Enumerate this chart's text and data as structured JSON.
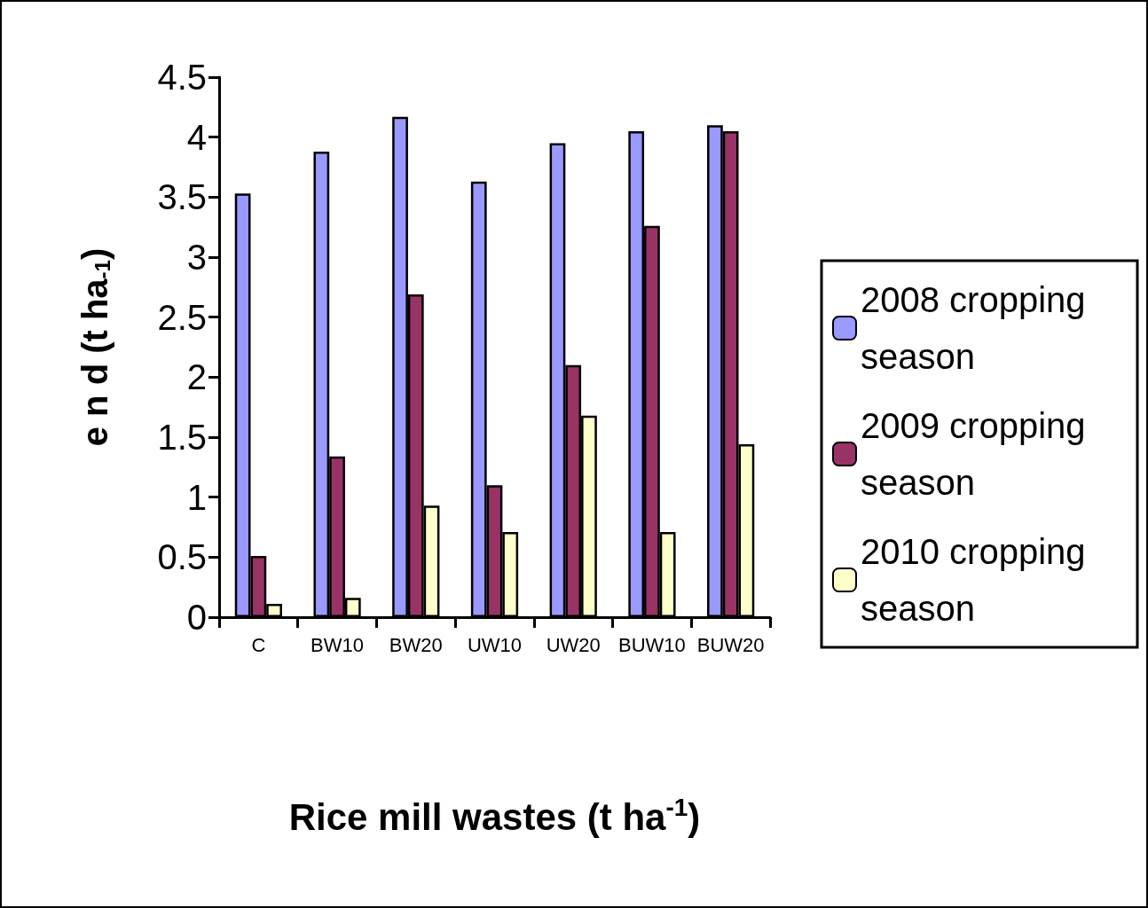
{
  "chart_data": {
    "type": "bar",
    "xlabel": "Rice mill wastes (t ha$^{-1}$)",
    "ylabel": "e n d (t ha$_{-1}$)",
    "categories": [
      "C",
      "BW10",
      "BW20",
      "UW10",
      "UW20",
      "BUW10",
      "BUW20"
    ],
    "series": [
      {
        "name": "2008 cropping season",
        "color": "#9999ff",
        "values": [
          3.53,
          3.88,
          4.17,
          3.63,
          3.95,
          4.05,
          4.1
        ]
      },
      {
        "name": "2009 cropping season",
        "color": "#993366",
        "values": [
          0.51,
          1.34,
          2.69,
          1.1,
          2.1,
          3.26,
          4.05
        ]
      },
      {
        "name": "2010 cropping season",
        "color": "#ffffcc",
        "values": [
          0.11,
          0.16,
          0.93,
          0.71,
          1.68,
          0.71,
          1.44
        ]
      }
    ],
    "ylim": [
      0,
      4.5
    ],
    "yticks": [
      0,
      0.5,
      1,
      1.5,
      2,
      2.5,
      3,
      3.5,
      4,
      4.5
    ],
    "grid": false,
    "legend": "right"
  }
}
